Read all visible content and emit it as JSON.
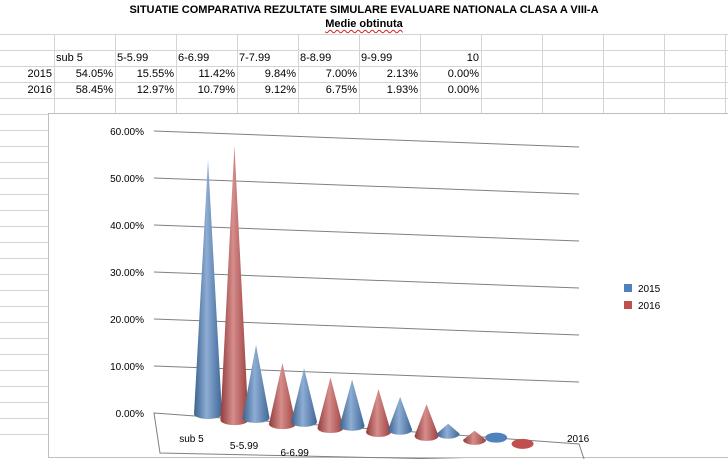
{
  "title": "SITUATIE COMPARATIVA REZULTATE SIMULARE EVALUARE NATIONALA CLASA A VIII-A",
  "subtitle": "Medie obtinuta",
  "table": {
    "headers": [
      "sub 5",
      "5-5.99",
      "6-6.99",
      "7-7.99",
      "8-8.99",
      "9-9.99",
      "10"
    ],
    "rows": [
      {
        "label": "2015",
        "values": [
          "54.05%",
          "15.55%",
          "11.42%",
          "9.84%",
          "7.00%",
          "2.13%",
          "0.00%"
        ]
      },
      {
        "label": "2016",
        "values": [
          "58.45%",
          "12.97%",
          "10.79%",
          "9.12%",
          "6.75%",
          "1.93%",
          "0.00%"
        ]
      }
    ]
  },
  "chart_data": {
    "type": "bar",
    "style": "3d-cone",
    "categories": [
      "sub 5",
      "5-5.99",
      "6-6.99",
      "7-7.99",
      "8-8.99",
      "9-9.99",
      "10"
    ],
    "visible_category_labels": [
      "sub 5",
      "5-5.99",
      "6-6.99"
    ],
    "series": [
      {
        "name": "2015",
        "values": [
          54.05,
          15.55,
          11.42,
          9.84,
          7.0,
          2.13,
          0.0
        ],
        "color": "#4f81bd"
      },
      {
        "name": "2016",
        "values": [
          58.45,
          12.97,
          10.79,
          9.12,
          6.75,
          1.93,
          0.0
        ],
        "color": "#c0504d"
      }
    ],
    "ylim": [
      0,
      60
    ],
    "y_ticks": [
      "0.00%",
      "10.00%",
      "20.00%",
      "30.00%",
      "40.00%",
      "50.00%",
      "60.00%"
    ],
    "depth_label": "2016",
    "legend": {
      "position": "right",
      "entries": [
        "2015",
        "2016"
      ]
    },
    "grid": true
  }
}
